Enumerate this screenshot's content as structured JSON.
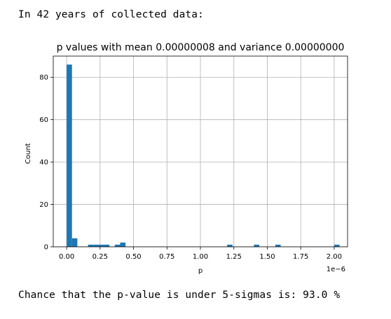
{
  "output": {
    "line_before": "In 42 years of collected data:",
    "line_after": "Chance that the p-value is under 5-sigmas is: 93.0 %"
  },
  "colors": {
    "bar": "#1f77b4",
    "grid": "#b0b0b0",
    "axis": "#000000"
  },
  "chart_data": {
    "type": "bar",
    "title": "p values with mean 0.00000008 and variance 0.00000000",
    "xlabel": "p",
    "ylabel": "Count",
    "x_offset_text": "1e−6",
    "grid": true,
    "xlim": [
      -0.1,
      2.1
    ],
    "ylim": [
      0,
      90
    ],
    "x_ticks": [
      0.0,
      0.25,
      0.5,
      0.75,
      1.0,
      1.25,
      1.5,
      1.75,
      2.0
    ],
    "x_tick_labels": [
      "0.00",
      "0.25",
      "0.50",
      "0.75",
      "1.00",
      "1.25",
      "1.50",
      "1.75",
      "2.00"
    ],
    "y_ticks": [
      0,
      20,
      40,
      60,
      80
    ],
    "y_tick_labels": [
      "0",
      "20",
      "40",
      "60",
      "80"
    ],
    "bin_width": 0.04,
    "bins": [
      {
        "x": 0.0,
        "count": 86
      },
      {
        "x": 0.04,
        "count": 4
      },
      {
        "x": 0.16,
        "count": 1
      },
      {
        "x": 0.2,
        "count": 1
      },
      {
        "x": 0.24,
        "count": 1
      },
      {
        "x": 0.28,
        "count": 1
      },
      {
        "x": 0.36,
        "count": 1
      },
      {
        "x": 0.4,
        "count": 2
      },
      {
        "x": 1.2,
        "count": 1
      },
      {
        "x": 1.4,
        "count": 1
      },
      {
        "x": 1.56,
        "count": 1
      },
      {
        "x": 2.0,
        "count": 1
      }
    ]
  }
}
